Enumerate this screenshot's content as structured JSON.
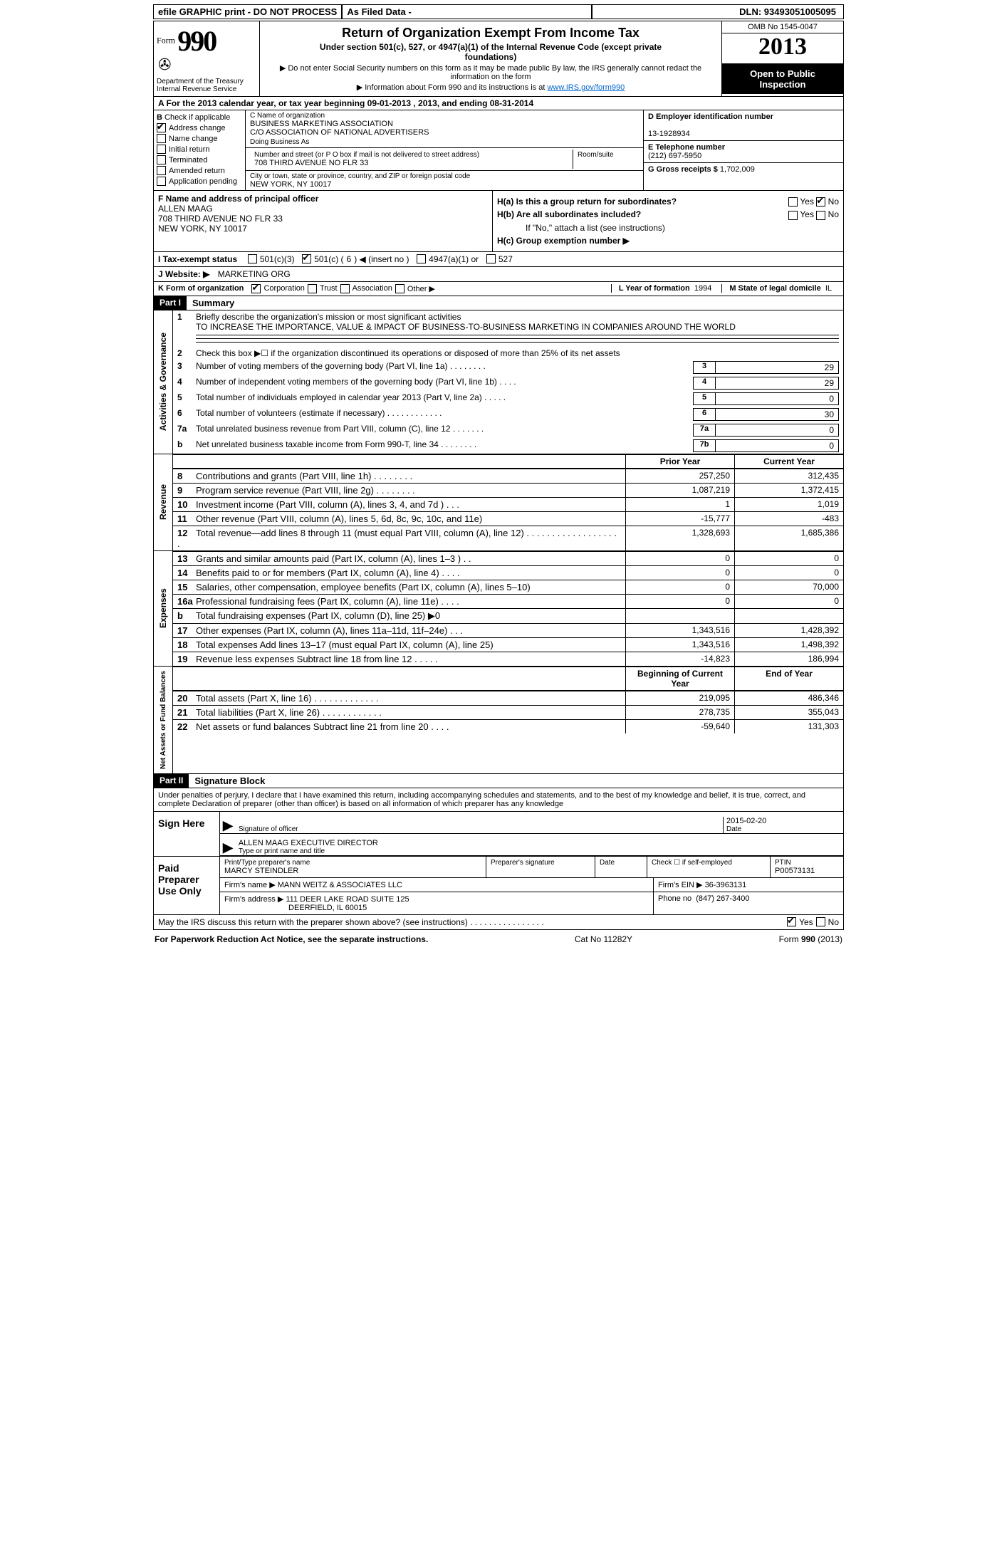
{
  "topbar": {
    "graphic": "efile GRAPHIC print - DO NOT PROCESS",
    "asfiled": "As Filed Data -",
    "dln_label": "DLN:",
    "dln": "93493051005095"
  },
  "header": {
    "form_word": "Form",
    "form_number": "990",
    "dept1": "Department of the Treasury",
    "dept2": "Internal Revenue Service",
    "title": "Return of Organization Exempt From Income Tax",
    "subtitle": "Under section 501(c), 527, or 4947(a)(1) of the Internal Revenue Code (except private foundations)",
    "note1": "▶ Do not enter Social Security numbers on this form as it may be made public  By law, the IRS generally cannot redact the information on the form",
    "note2_pre": "▶ Information about Form 990 and its instructions is at ",
    "note2_link": "www.IRS.gov/form990",
    "omb": "OMB No  1545-0047",
    "year": "2013",
    "inspect1": "Open to Public",
    "inspect2": "Inspection"
  },
  "rowA": "A   For the 2013 calendar year, or tax year beginning 09-01-2013     , 2013, and ending 08-31-2014",
  "B": {
    "label": "B",
    "check_label": "Check if applicable",
    "items": [
      {
        "label": "Address change",
        "checked": true
      },
      {
        "label": "Name change",
        "checked": false
      },
      {
        "label": "Initial return",
        "checked": false
      },
      {
        "label": "Terminated",
        "checked": false
      },
      {
        "label": "Amended return",
        "checked": false
      },
      {
        "label": "Application pending",
        "checked": false
      }
    ]
  },
  "C": {
    "name_label": "C Name of organization",
    "name": "BUSINESS MARKETING ASSOCIATION",
    "co": "C/O ASSOCIATION OF NATIONAL ADVERTISERS",
    "dba_label": "Doing Business As",
    "addr_label": "Number and street (or P O  box if mail is not delivered to street address)",
    "room_label": "Room/suite",
    "addr": "708 THIRD AVENUE NO FLR 33",
    "city_label": "City or town, state or province, country, and ZIP or foreign postal code",
    "city": "NEW YORK, NY  10017"
  },
  "D": {
    "ein_label": "D Employer identification number",
    "ein": "13-1928934",
    "phone_label": "E Telephone number",
    "phone": "(212) 697-5950",
    "gross_label": "G Gross receipts $",
    "gross": "1,702,009"
  },
  "F": {
    "label": "F   Name and address of principal officer",
    "line1": "ALLEN MAAG",
    "line2": "708 THIRD AVENUE NO FLR 33",
    "line3": "NEW YORK, NY  10017"
  },
  "H": {
    "a_label": "H(a)   Is this a group return for subordinates?",
    "a_yes": false,
    "a_no": true,
    "b_label": "H(b)   Are all subordinates included?",
    "b_note": "If \"No,\" attach a list  (see instructions)",
    "c_label": "H(c)   Group exemption number ▶"
  },
  "I": {
    "label": "I    Tax-exempt status",
    "c3": false,
    "c": true,
    "c_num": "6",
    "a1": false,
    "s527": false
  },
  "J": {
    "label": "J   Website: ▶",
    "value": "MARKETING ORG"
  },
  "K": {
    "label": "K Form of organization",
    "corp": true,
    "trust": false,
    "assoc": false,
    "other": false,
    "yearform_label": "L Year of formation",
    "yearform": "1994",
    "state_label": "M State of legal domicile",
    "state": "IL"
  },
  "part1_label": "Part I",
  "part1_title": "Summary",
  "vtabs": {
    "ag": "Activities & Governance",
    "rev": "Revenue",
    "exp": "Expenses",
    "na": "Net Assets or\nFund Balances"
  },
  "sum": {
    "mission_label": "Briefly describe the organization's mission or most significant activities",
    "mission": "TO INCREASE THE IMPORTANCE, VALUE & IMPACT OF BUSINESS-TO-BUSINESS MARKETING IN COMPANIES AROUND THE WORLD",
    "line2": "Check this box ▶☐ if the organization discontinued its operations or disposed of more than 25% of its net assets",
    "rows36": [
      {
        "n": "3",
        "t": "Number of voting members of the governing body (Part VI, line 1a)   .     .     .     .     .     .     .     .",
        "b": "3",
        "v": "29"
      },
      {
        "n": "4",
        "t": "Number of independent voting members of the governing body (Part VI, line 1b)    .     .     .     .",
        "b": "4",
        "v": "29"
      },
      {
        "n": "5",
        "t": "Total number of individuals employed in calendar year 2013 (Part V, line 2a)  .     .     .     .     .",
        "b": "5",
        "v": "0"
      },
      {
        "n": "6",
        "t": "Total number of volunteers (estimate if necessary)   .     .     .     .     .     .     .     .     .     .     .     .",
        "b": "6",
        "v": "30"
      },
      {
        "n": "7a",
        "t": "Total unrelated business revenue from Part VIII, column (C), line 12   .     .     .     .     .     .     .",
        "b": "7a",
        "v": "0"
      },
      {
        "n": "b",
        "t": "Net unrelated business taxable income from Form 990-T, line 34   .     .     .     .     .     .     .     .",
        "b": "7b",
        "v": "0"
      }
    ],
    "col_hdr": {
      "prior": "Prior Year",
      "curr": "Current Year"
    },
    "revenue": [
      {
        "n": "8",
        "t": "Contributions and grants (Part VIII, line 1h)     .     .     .     .     .     .     .     .",
        "p": "257,250",
        "c": "312,435"
      },
      {
        "n": "9",
        "t": "Program service revenue (Part VIII, line 2g)   .     .     .     .     .     .     .     .",
        "p": "1,087,219",
        "c": "1,372,415"
      },
      {
        "n": "10",
        "t": "Investment income (Part VIII, column (A), lines 3, 4, and 7d )   .     .     .",
        "p": "1",
        "c": "1,019"
      },
      {
        "n": "11",
        "t": "Other revenue (Part VIII, column (A), lines 5, 6d, 8c, 9c, 10c, and 11e)",
        "p": "-15,777",
        "c": "-483"
      },
      {
        "n": "12",
        "t": "Total revenue—add lines 8 through 11 (must equal Part VIII, column (A), line 12) .     .     .     .     .     .     .     .     .     .     .     .     .     .     .     .     .     .     .",
        "p": "1,328,693",
        "c": "1,685,386"
      }
    ],
    "expenses": [
      {
        "n": "13",
        "t": "Grants and similar amounts paid (Part IX, column (A), lines 1–3 )   .     .",
        "p": "0",
        "c": "0"
      },
      {
        "n": "14",
        "t": "Benefits paid to or for members (Part IX, column (A), line 4)   .     .     .     .",
        "p": "0",
        "c": "0"
      },
      {
        "n": "15",
        "t": "Salaries, other compensation, employee benefits (Part IX, column (A), lines 5–10)",
        "p": "0",
        "c": "70,000"
      },
      {
        "n": "16a",
        "t": "Professional fundraising fees (Part IX, column (A), line 11e)   .     .     .     .",
        "p": "0",
        "c": "0"
      },
      {
        "n": "b",
        "t": "Total fundraising expenses (Part IX, column (D), line 25) ▶0",
        "p": "",
        "c": ""
      },
      {
        "n": "17",
        "t": "Other expenses (Part IX, column (A), lines 11a–11d, 11f–24e)   .     .     .",
        "p": "1,343,516",
        "c": "1,428,392"
      },
      {
        "n": "18",
        "t": "Total expenses  Add lines 13–17 (must equal Part IX, column (A), line 25)",
        "p": "1,343,516",
        "c": "1,498,392"
      },
      {
        "n": "19",
        "t": "Revenue less expenses  Subtract line 18 from line 12     .     .     .     .     .",
        "p": "-14,823",
        "c": "186,994"
      }
    ],
    "na_hdr": {
      "boy": "Beginning of Current Year",
      "eoy": "End of Year"
    },
    "netassets": [
      {
        "n": "20",
        "t": "Total assets (Part X, line 16)   .     .     .     .     .     .     .     .     .     .     .     .     .",
        "p": "219,095",
        "c": "486,346"
      },
      {
        "n": "21",
        "t": "Total liabilities (Part X, line 26)     .     .     .     .     .     .     .     .     .     .     .     .",
        "p": "278,735",
        "c": "355,043"
      },
      {
        "n": "22",
        "t": "Net assets or fund balances  Subtract line 21 from line 20   .     .     .     .",
        "p": "-59,640",
        "c": "131,303"
      }
    ]
  },
  "part2_label": "Part II",
  "part2_title": "Signature Block",
  "perjury": "Under penalties of perjury, I declare that I have examined this return, including accompanying schedules and statements, and to the best of my knowledge and belief, it is true, correct, and complete  Declaration of preparer (other than officer) is based on all information of which preparer has any knowledge",
  "sign": {
    "here": "Sign Here",
    "sig_of_officer": "Signature of officer",
    "date_label": "Date",
    "date": "2015-02-20",
    "title_line": "ALLEN MAAG  EXECUTIVE DIRECTOR",
    "title_label": "Type or print name and title"
  },
  "paid": {
    "label": "Paid Preparer Use Only",
    "preparer_name_label": "Print/Type preparer's name",
    "preparer_name": "MARCY STEINDLER",
    "preparer_sig_label": "Preparer's signature",
    "date_label": "Date",
    "self_label": "Check ☐ if self-employed",
    "ptin_label": "PTIN",
    "ptin": "P00573131",
    "firm_name_label": "Firm's name     ▶",
    "firm_name": "MANN WEITZ & ASSOCIATES LLC",
    "firm_ein_label": "Firm's EIN ▶",
    "firm_ein": "36-3963131",
    "firm_addr_label": "Firm's address ▶",
    "firm_addr1": "111 DEER LAKE ROAD SUITE 125",
    "firm_addr2": "DEERFIELD, IL  60015",
    "phone_label": "Phone no",
    "phone": "(847) 267-3400"
  },
  "discuss": {
    "q": "May the IRS discuss this return with the preparer shown above? (see instructions)   .     .     .     .     .     .     .     .     .     .     .     .     .     .     .     .",
    "yes": true,
    "no": false
  },
  "footer": {
    "left": "For Paperwork Reduction Act Notice, see the separate instructions.",
    "mid": "Cat  No  11282Y",
    "right": "Form 990 (2013)"
  }
}
